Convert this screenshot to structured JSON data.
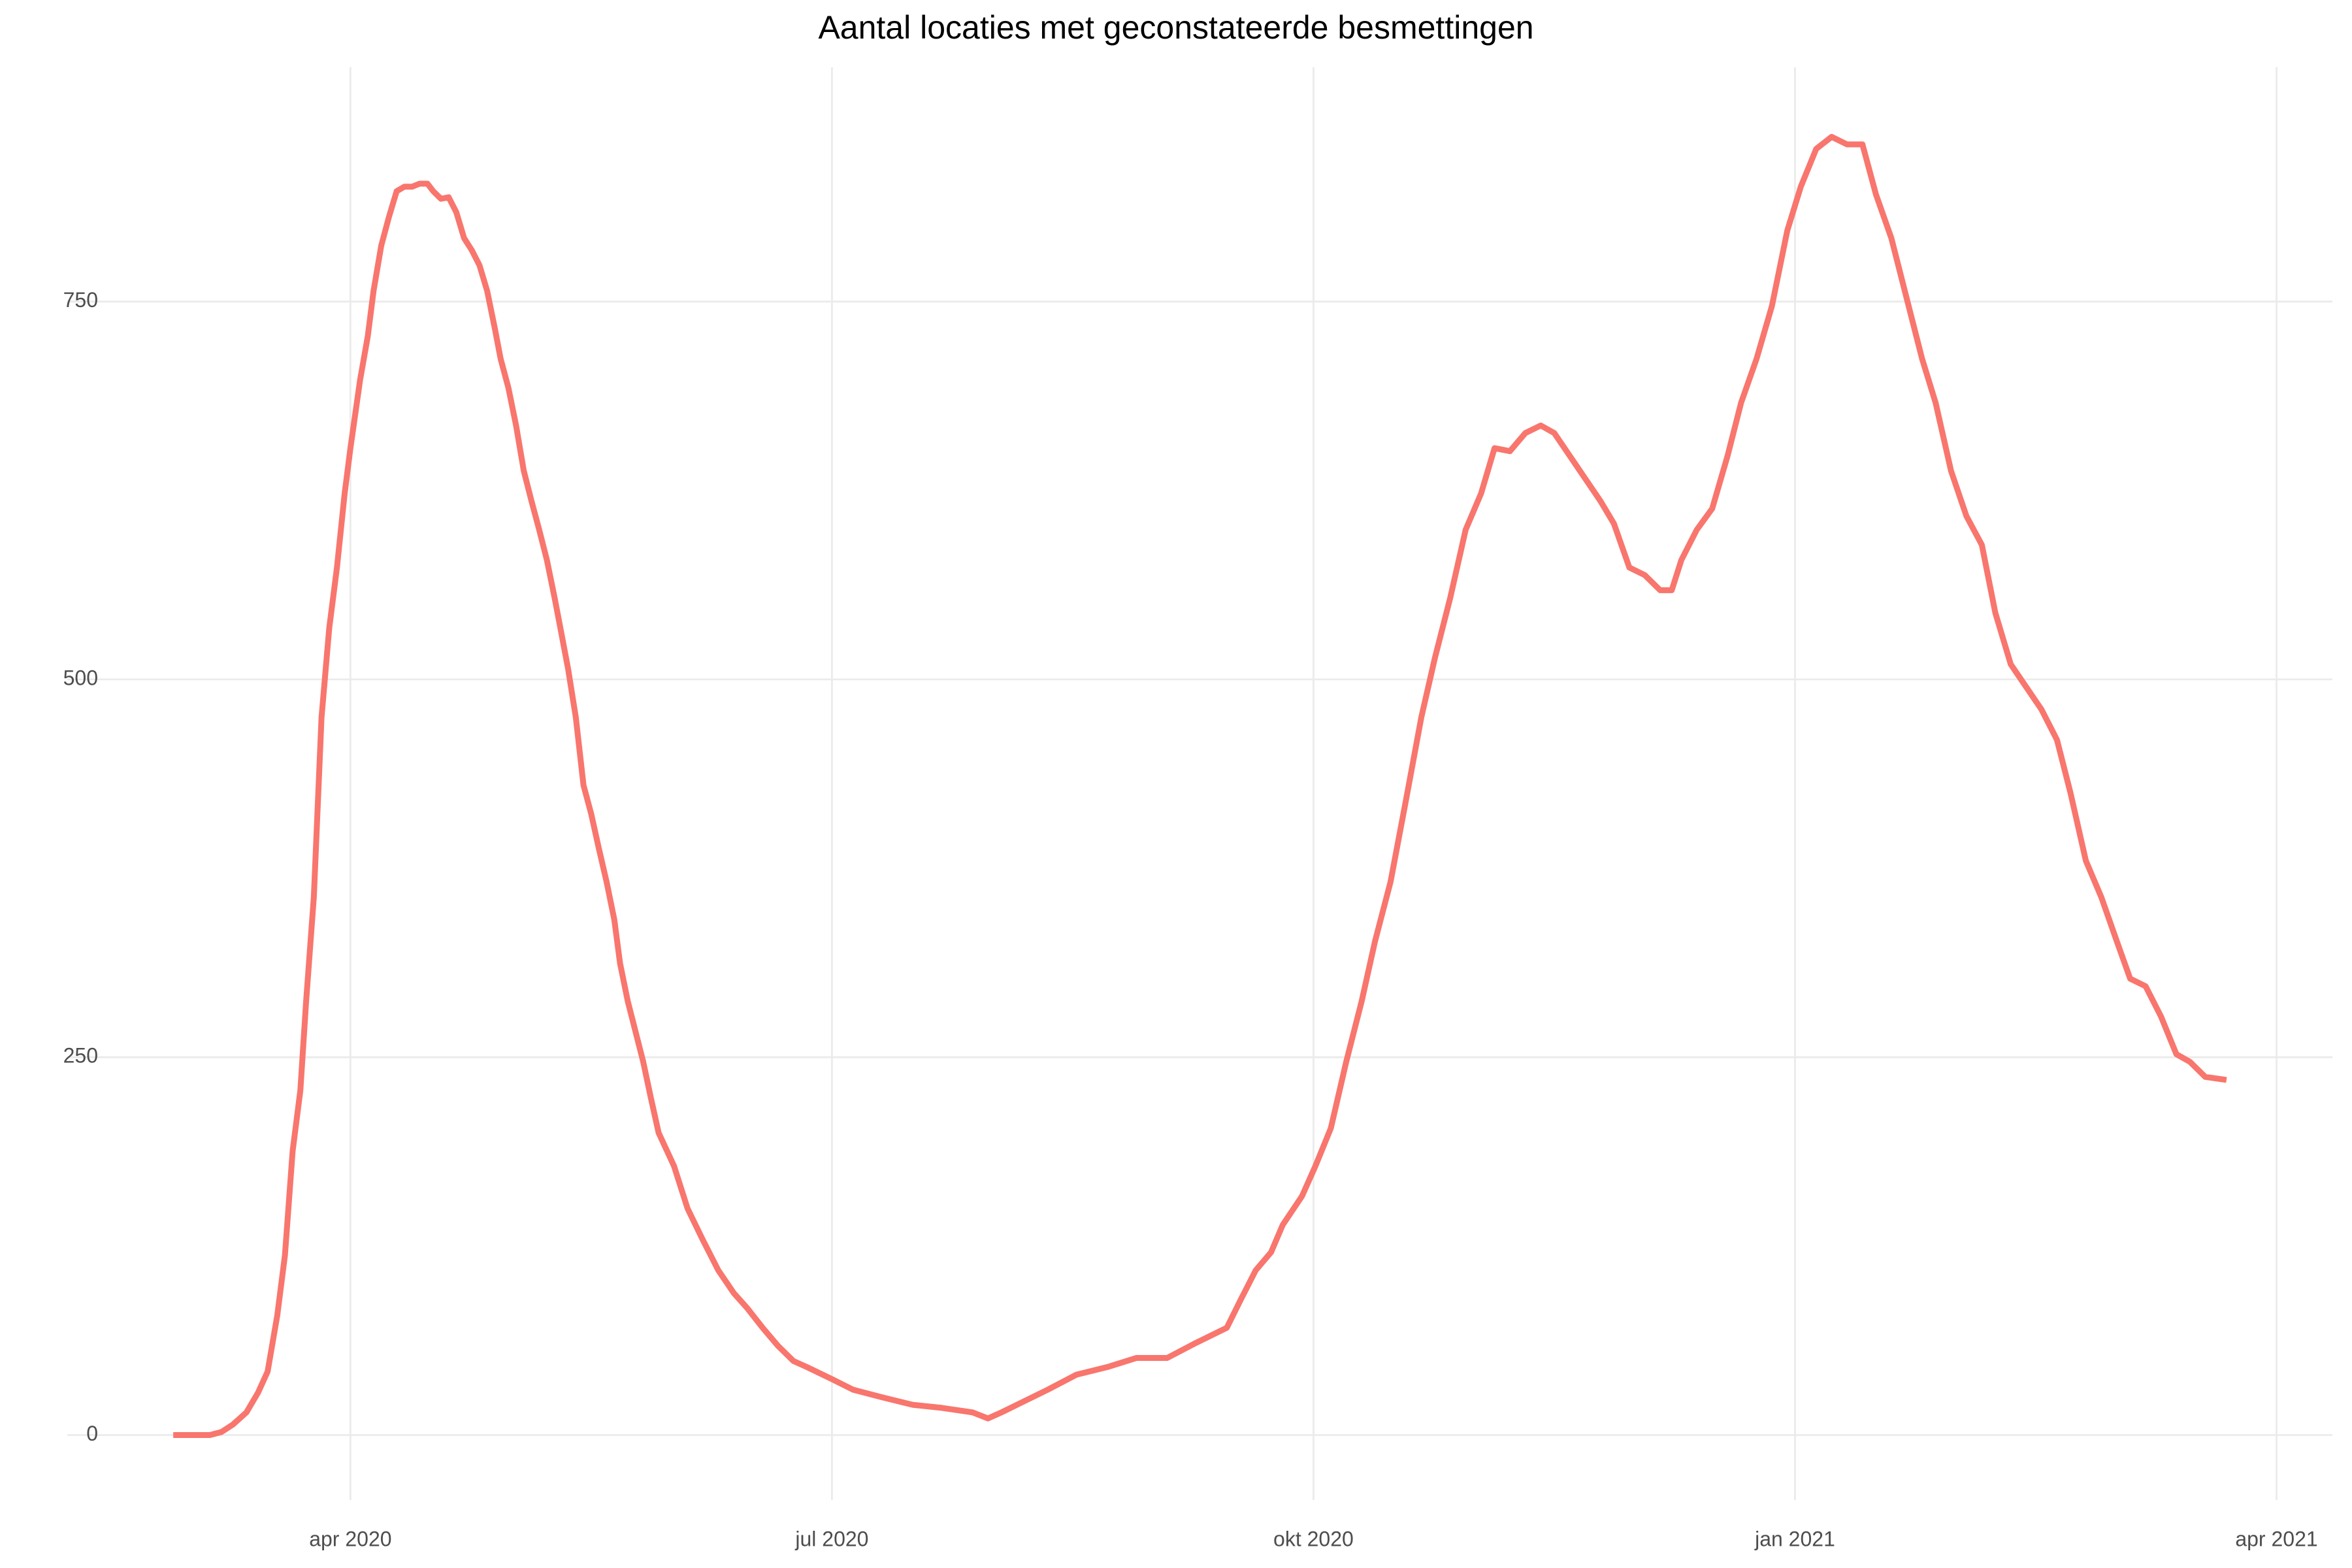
{
  "chart_data": {
    "type": "line",
    "title": "Aantal locaties met geconstateerde besmettingen",
    "x": [
      2020.158,
      2020.169,
      2020.177,
      2020.183,
      2020.189,
      2020.196,
      2020.202,
      2020.207,
      2020.212,
      2020.216,
      2020.22,
      2020.224,
      2020.227,
      2020.231,
      2020.235,
      2020.239,
      2020.243,
      2020.247,
      2020.25,
      2020.255,
      2020.259,
      2020.262,
      2020.266,
      2020.27,
      2020.274,
      2020.278,
      2020.282,
      2020.286,
      2020.29,
      2020.293,
      2020.297,
      2020.301,
      2020.305,
      2020.309,
      2020.313,
      2020.317,
      2020.321,
      2020.325,
      2020.328,
      2020.332,
      2020.336,
      2020.34,
      2020.344,
      2020.348,
      2020.352,
      2020.356,
      2020.359,
      2020.363,
      2020.367,
      2020.371,
      2020.375,
      2020.379,
      2020.383,
      2020.387,
      2020.39,
      2020.394,
      2020.398,
      2020.402,
      2020.406,
      2020.41,
      2020.418,
      2020.425,
      2020.433,
      2020.441,
      2020.449,
      2020.456,
      2020.464,
      2020.472,
      2020.48,
      2020.487,
      2020.5,
      2020.511,
      2020.526,
      2020.542,
      2020.557,
      2020.573,
      2020.581,
      2020.588,
      2020.596,
      2020.612,
      2020.627,
      2020.643,
      2020.658,
      2020.674,
      2020.689,
      2020.705,
      2020.712,
      2020.72,
      2020.728,
      2020.734,
      2020.744,
      2020.751,
      2020.759,
      2020.767,
      2020.775,
      2020.782,
      2020.79,
      2020.798,
      2020.806,
      2020.813,
      2020.821,
      2020.829,
      2020.837,
      2020.844,
      2020.852,
      2020.86,
      2020.868,
      2020.875,
      2020.883,
      2020.891,
      2020.899,
      2020.906,
      2020.914,
      2020.922,
      2020.93,
      2020.936,
      2020.941,
      2020.949,
      2020.957,
      2020.965,
      2020.972,
      2020.98,
      2020.988,
      2020.996,
      2021.003,
      2021.011,
      2021.019,
      2021.027,
      2021.035,
      2021.042,
      2021.05,
      2021.058,
      2021.066,
      2021.073,
      2021.081,
      2021.089,
      2021.097,
      2021.104,
      2021.112,
      2021.12,
      2021.128,
      2021.136,
      2021.143,
      2021.151,
      2021.159,
      2021.167,
      2021.174,
      2021.182,
      2021.19,
      2021.198,
      2021.205,
      2021.213,
      2021.224
    ],
    "series": [
      {
        "color": "#F8766D",
        "values": [
          0,
          0,
          0,
          2,
          7,
          15,
          28,
          42,
          79,
          119,
          188,
          228,
          287,
          356,
          475,
          534,
          574,
          623,
          653,
          698,
          727,
          757,
          787,
          806,
          823,
          826,
          826,
          828,
          828,
          823,
          818,
          819,
          809,
          792,
          784,
          774,
          757,
          732,
          712,
          693,
          668,
          638,
          618,
          599,
          579,
          554,
          534,
          507,
          475,
          430,
          411,
          388,
          366,
          341,
          312,
          287,
          267,
          247,
          223,
          200,
          178,
          150,
          129,
          109,
          94,
          84,
          71,
          59,
          49,
          45,
          37,
          30,
          25,
          20,
          18,
          15,
          11,
          15,
          20,
          30,
          40,
          45,
          51,
          51,
          61,
          71,
          89,
          109,
          121,
          139,
          158,
          178,
          203,
          247,
          287,
          327,
          366,
          420,
          475,
          514,
          554,
          599,
          623,
          653,
          651,
          663,
          668,
          663,
          648,
          633,
          618,
          603,
          574,
          569,
          559,
          559,
          579,
          599,
          613,
          648,
          683,
          712,
          747,
          797,
          826,
          851,
          859,
          854,
          854,
          821,
          792,
          752,
          712,
          683,
          638,
          608,
          589,
          544,
          510,
          495,
          480,
          460,
          425,
          380,
          356,
          327,
          302,
          297,
          277,
          252,
          247,
          237,
          235
        ]
      }
    ],
    "xlim": [
      2020.103,
      2021.279
    ],
    "xticks": [
      {
        "value": 2020.25,
        "label": "apr 2020"
      },
      {
        "value": 2020.5,
        "label": "jul 2020"
      },
      {
        "value": 2020.75,
        "label": "okt 2020"
      },
      {
        "value": 2021.0,
        "label": "jan 2021"
      },
      {
        "value": 2021.25,
        "label": "apr 2021"
      }
    ],
    "ylim": [
      -43,
      905
    ],
    "yticks": [
      0,
      250,
      500,
      750
    ],
    "grid": true
  }
}
